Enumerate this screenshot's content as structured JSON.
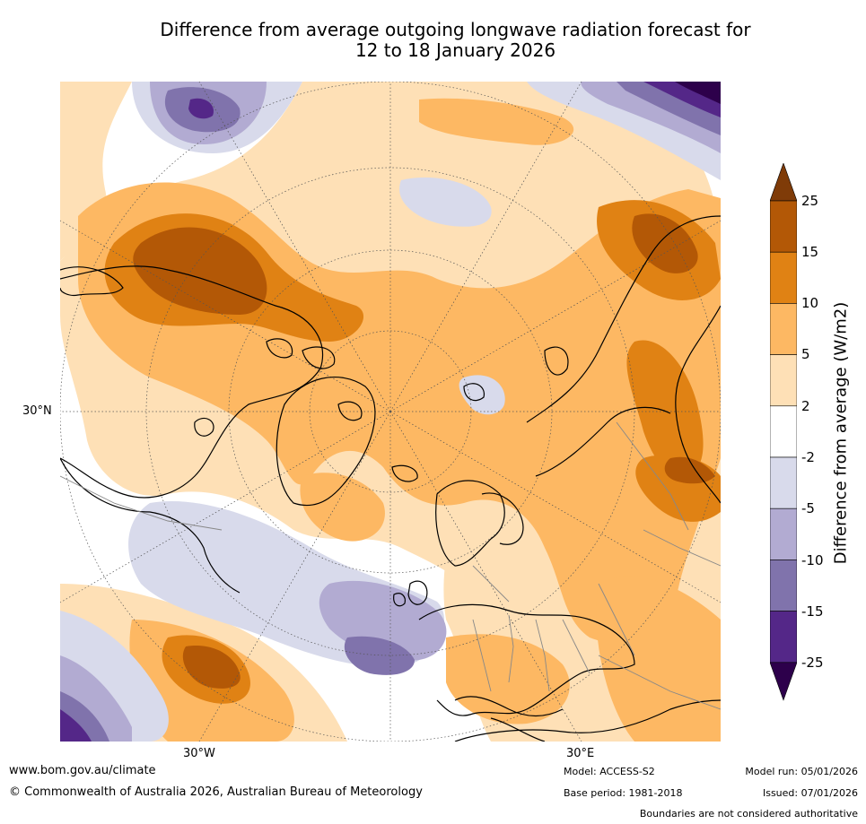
{
  "title": {
    "line1": "Difference from average outgoing longwave radiation forecast for",
    "line2": "12 to 18 January 2026"
  },
  "map": {
    "projection": "polar-stereographic-north",
    "lat_label": "30°N",
    "lon_labels": [
      "30°W",
      "30°E"
    ],
    "colors": {
      "ocean_bg": "#ffffff",
      "coast": "#000000",
      "borders": "#888888",
      "graticule": "#555555"
    }
  },
  "colorbar": {
    "title": "Difference from average (W/m2)",
    "ticks": [
      "25",
      "15",
      "10",
      "5",
      "2",
      "-2",
      "-5",
      "-10",
      "-15",
      "-25"
    ],
    "colors": [
      {
        "range": ">25",
        "hex": "#7f3b08"
      },
      {
        "range": "15 to 25",
        "hex": "#b35806"
      },
      {
        "range": "10 to 15",
        "hex": "#e08214"
      },
      {
        "range": "5 to 10",
        "hex": "#fdb863"
      },
      {
        "range": "2 to 5",
        "hex": "#fee0b6"
      },
      {
        "range": "-2 to 2",
        "hex": "#ffffff"
      },
      {
        "range": "-5 to -2",
        "hex": "#d8daeb"
      },
      {
        "range": "-10 to -5",
        "hex": "#b2abd2"
      },
      {
        "range": "-15 to -10",
        "hex": "#8073ac"
      },
      {
        "range": "-25 to -15",
        "hex": "#542788"
      },
      {
        "range": "<-25",
        "hex": "#2d004b"
      }
    ]
  },
  "footer": {
    "url": "www.bom.gov.au/climate",
    "copyright": "© Commonwealth of Australia 2026, Australian Bureau of Meteorology",
    "model": "Model: ACCESS-S2",
    "base_period": "Base period: 1981-2018",
    "model_run": "Model run: 05/01/2026",
    "issued": "Issued: 07/01/2026",
    "boundaries_note": "Boundaries are not considered authoritative"
  }
}
